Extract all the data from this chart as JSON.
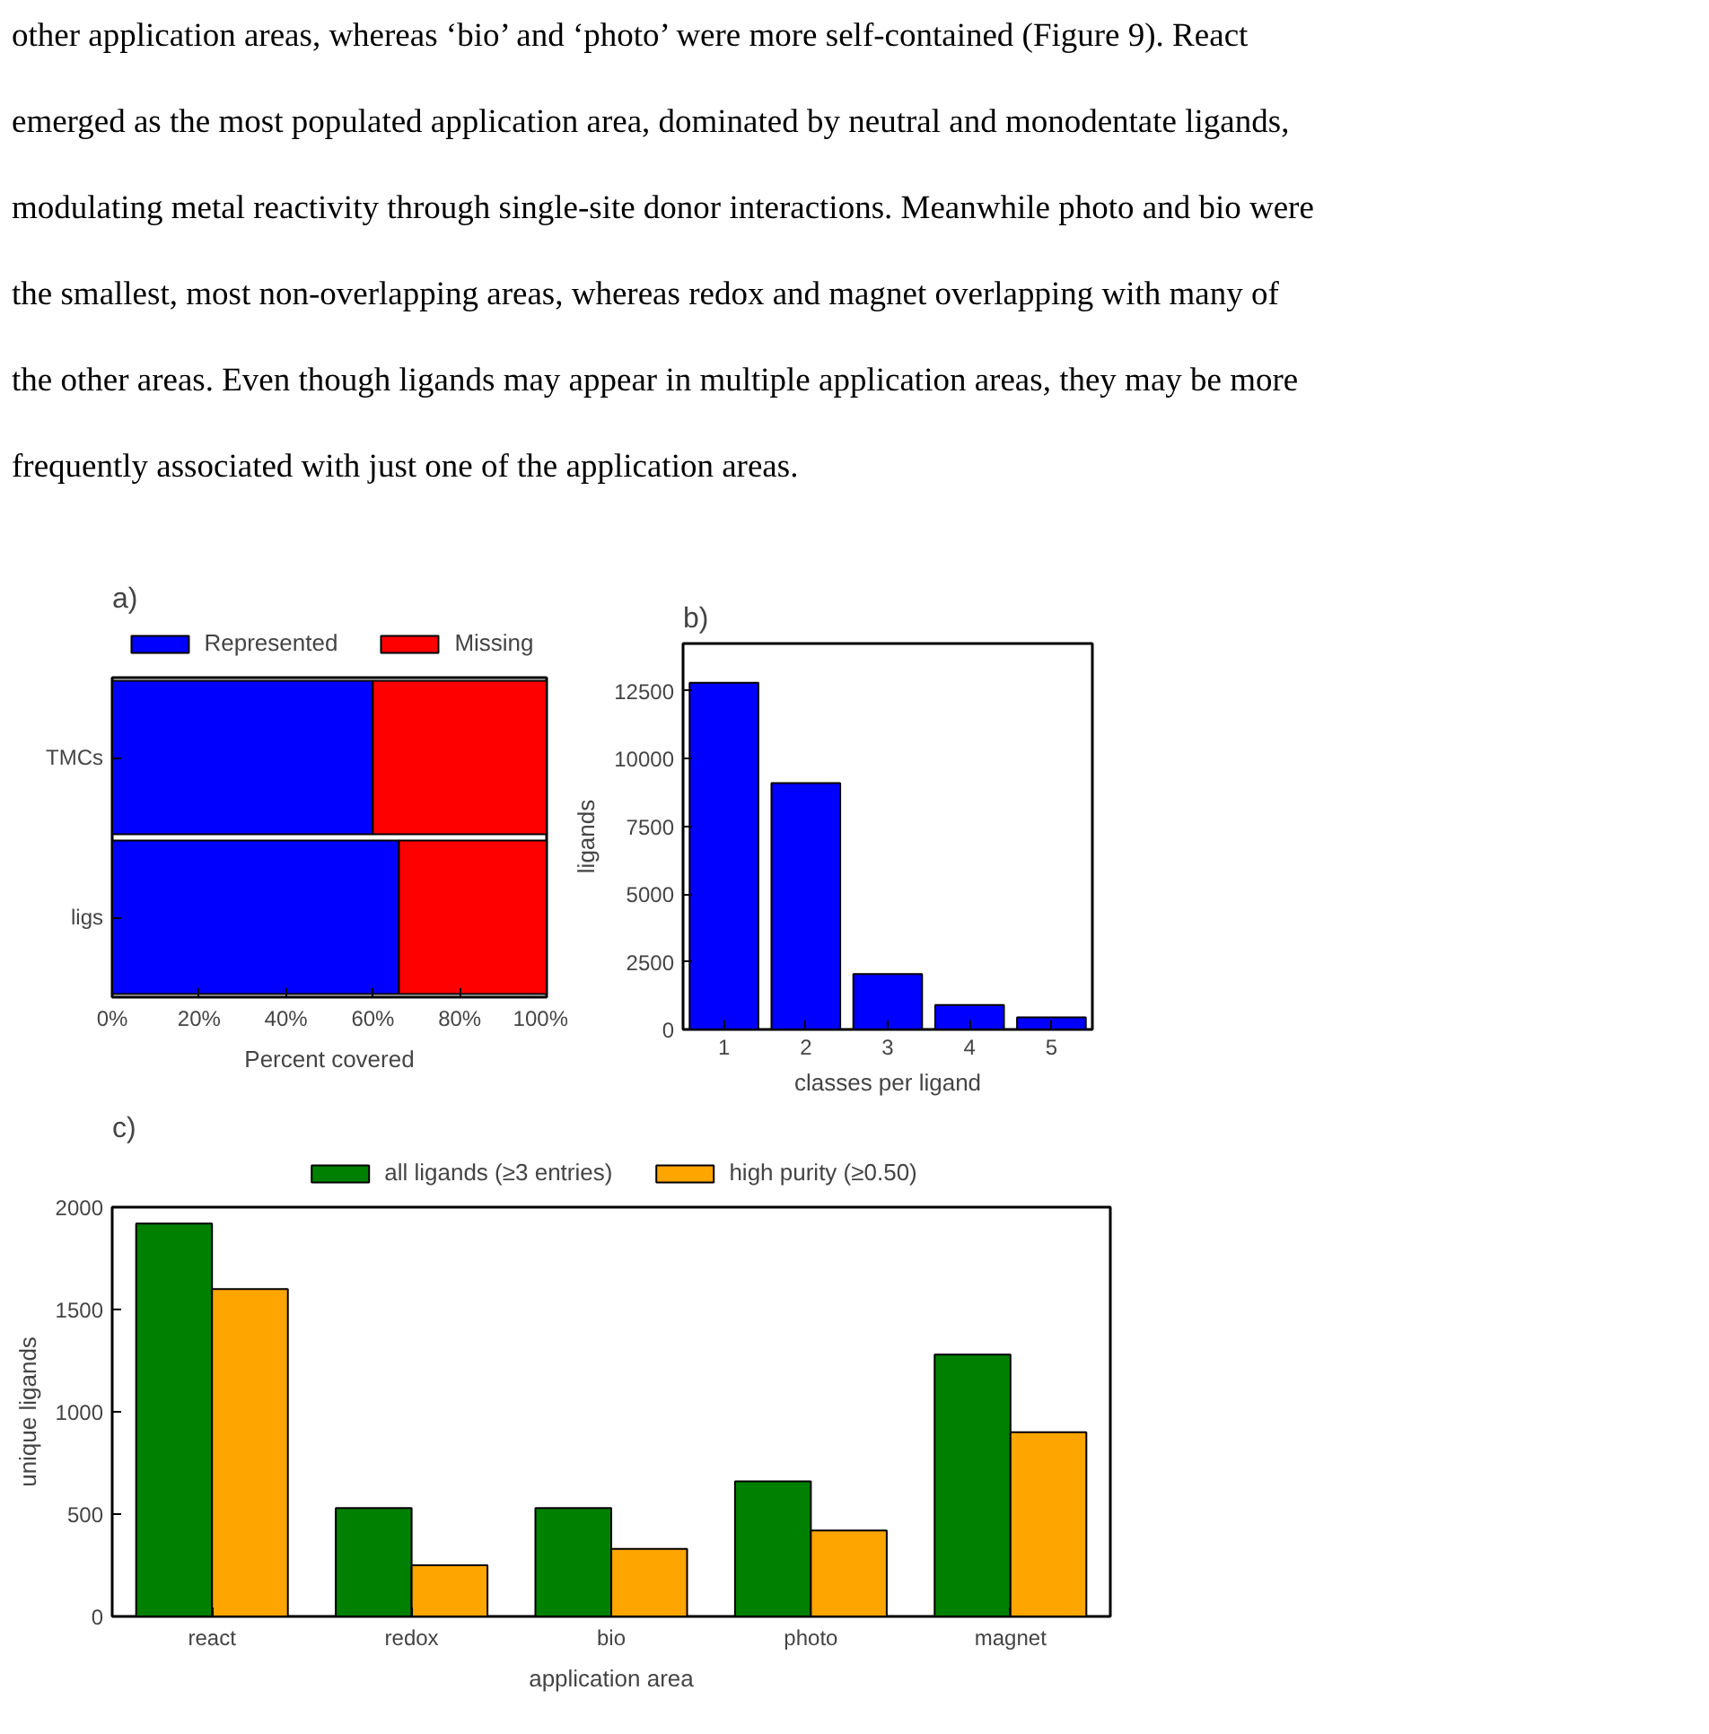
{
  "chart_data": [
    {
      "type": "other",
      "annotations": [
        "other application areas, whereas ‘bio’ and ‘photo’ were more self-contained (Figure 9). React",
        "emerged as the most populated application area, dominated by neutral and monodentate ligands,",
        "modulating metal reactivity through single-site donor interactions. Meanwhile photo and bio were",
        "the smallest, most non-overlapping areas, whereas redox and magnet overlapping with many of",
        "the other areas. Even though ligands may appear in multiple application areas, they may be more",
        "frequently associated with just one of the application areas."
      ]
    },
    {
      "type": "bar",
      "title": "a)",
      "orientation": "horizontal",
      "stacked": true,
      "xlabel": "Percent covered",
      "categories": [
        "TMCs",
        "ligs"
      ],
      "series": [
        {
          "name": "Represented",
          "color": "#0000ff",
          "values": [
            60,
            66
          ]
        },
        {
          "name": "Missing",
          "color": "#ff0000",
          "values": [
            40,
            34
          ]
        }
      ],
      "xlim": [
        0,
        100
      ],
      "xticks": [
        {
          "value": 0,
          "label": "0%"
        },
        {
          "value": 20,
          "label": "20%"
        },
        {
          "value": 40,
          "label": "40%"
        },
        {
          "value": 60,
          "label": "60%"
        },
        {
          "value": 80,
          "label": "80%"
        },
        {
          "value": 100,
          "label": "100%"
        }
      ],
      "legend": "top",
      "grid": false
    },
    {
      "type": "bar",
      "title": "b)",
      "xlabel": "classes per ligand",
      "ylabel": "ligands",
      "categories": [
        "1",
        "2",
        "3",
        "4",
        "5"
      ],
      "series": [
        {
          "color": "#0000ff",
          "values": [
            12800,
            9100,
            2050,
            900,
            450
          ]
        }
      ],
      "ylim": [
        0,
        14250
      ],
      "yticks": [
        0,
        2500,
        5000,
        7500,
        10000,
        12500
      ],
      "grid": false
    },
    {
      "type": "bar",
      "title": "c)",
      "xlabel": "application area",
      "ylabel": "unique ligands",
      "categories": [
        "react",
        "redox",
        "bio",
        "photo",
        "magnet"
      ],
      "series": [
        {
          "name": "all ligands (≥3 entries)",
          "color": "#008000",
          "values": [
            1920,
            530,
            530,
            660,
            1280
          ]
        },
        {
          "name": "high purity (≥0.50)",
          "color": "#ffa500",
          "values": [
            1600,
            250,
            330,
            420,
            900
          ]
        }
      ],
      "ylim": [
        0,
        2000
      ],
      "yticks": [
        0,
        500,
        1000,
        1500,
        2000
      ],
      "legend": "top",
      "grid": false
    }
  ]
}
